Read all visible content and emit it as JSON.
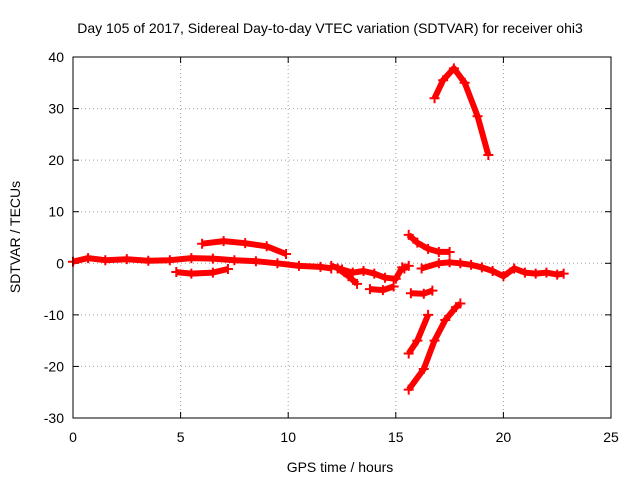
{
  "chart_data": {
    "type": "line",
    "title": "Day 105 of 2017, Sidereal Day-to-day VTEC variation (SDTVAR) for receiver ohi3",
    "xlabel": "GPS time / hours",
    "ylabel": "SDTVAR / TECUs",
    "xlim": [
      0,
      25
    ],
    "ylim": [
      -30,
      40
    ],
    "xticks": [
      0,
      5,
      10,
      15,
      20,
      25
    ],
    "yticks": [
      -30,
      -20,
      -10,
      0,
      10,
      20,
      30,
      40
    ],
    "grid": true,
    "colors": {
      "series": "#ff0000",
      "grid": "#a0a0a0",
      "axes": "#000000"
    },
    "series": [
      {
        "x": [
          0.0,
          0.7,
          1.5,
          2.5,
          3.5,
          4.5,
          5.5,
          6.5,
          7.5,
          8.5,
          9.5,
          10.5,
          11.5,
          12.0
        ],
        "y": [
          0.3,
          1.0,
          0.6,
          0.8,
          0.5,
          0.6,
          1.0,
          0.9,
          0.6,
          0.4,
          0.0,
          -0.5,
          -0.7,
          -1.0
        ]
      },
      {
        "x": [
          4.8,
          5.5,
          6.5,
          7.2
        ],
        "y": [
          -1.7,
          -2.0,
          -1.8,
          -1.1
        ]
      },
      {
        "x": [
          6.0,
          7.0,
          8.0,
          9.0,
          9.9
        ],
        "y": [
          3.8,
          4.3,
          3.9,
          3.3,
          1.8
        ]
      },
      {
        "x": [
          12.0,
          12.5,
          13.0,
          13.5,
          14.0,
          14.5,
          15.0,
          15.3
        ],
        "y": [
          -0.5,
          -1.2,
          -1.8,
          -1.5,
          -2.0,
          -2.8,
          -3.0,
          -0.8
        ]
      },
      {
        "x": [
          12.3,
          12.8,
          13.2
        ],
        "y": [
          -1.0,
          -2.5,
          -4.0
        ]
      },
      {
        "x": [
          13.8,
          14.4,
          14.9
        ],
        "y": [
          -5.0,
          -5.2,
          -4.5
        ]
      },
      {
        "x": [
          15.4,
          15.6
        ],
        "y": [
          -1.0,
          -0.5
        ]
      },
      {
        "x": [
          15.6,
          16.0,
          16.5,
          17.0,
          17.5
        ],
        "y": [
          5.5,
          4.0,
          2.8,
          2.2,
          2.2
        ]
      },
      {
        "x": [
          16.2,
          17.0,
          17.5,
          18.0,
          18.5,
          19.0,
          19.5,
          20.0,
          20.5,
          21.0,
          21.5,
          22.0,
          22.5,
          22.8
        ],
        "y": [
          -1.0,
          0.0,
          0.2,
          0.0,
          -0.3,
          -0.8,
          -1.5,
          -2.5,
          -1.0,
          -1.8,
          -2.0,
          -1.8,
          -2.2,
          -2.0
        ]
      },
      {
        "x": [
          15.7,
          16.3,
          16.7
        ],
        "y": [
          -5.8,
          -5.9,
          -5.3
        ]
      },
      {
        "x": [
          15.6,
          16.0,
          16.5
        ],
        "y": [
          -17.5,
          -15.0,
          -10.0
        ]
      },
      {
        "x": [
          15.6,
          16.3,
          16.8,
          17.3,
          17.8,
          18.0
        ],
        "y": [
          -24.5,
          -20.5,
          -15.0,
          -11.0,
          -8.5,
          -7.8
        ]
      },
      {
        "x": [
          16.8,
          17.2,
          17.7,
          18.2,
          18.8,
          19.3
        ],
        "y": [
          32.0,
          35.5,
          37.8,
          35.0,
          28.5,
          21.0
        ]
      }
    ]
  }
}
